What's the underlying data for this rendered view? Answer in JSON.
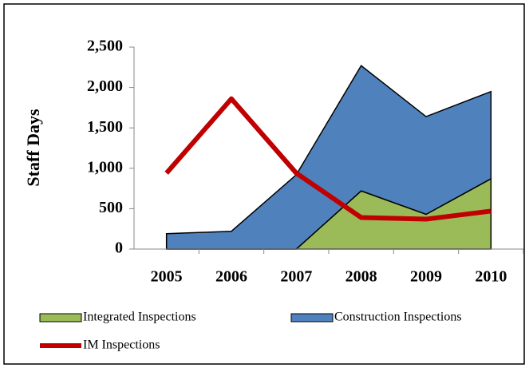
{
  "chart_data": {
    "type": "stacked-area-line",
    "y_label": "Staff Days",
    "categories": [
      "2005",
      "2006",
      "2007",
      "2008",
      "2009",
      "2010"
    ],
    "series": [
      {
        "name": "Integrated Inspections",
        "kind": "area",
        "color": "#9bbb59",
        "values": [
          0,
          0,
          0,
          720,
          430,
          870
        ]
      },
      {
        "name": "Construction Inspections",
        "kind": "area",
        "color": "#4f81bd",
        "values": [
          190,
          220,
          920,
          1550,
          1210,
          1080
        ]
      },
      {
        "name": "IM Inspections",
        "kind": "line",
        "color": "#c00000",
        "values": [
          940,
          1860,
          940,
          390,
          370,
          470
        ]
      }
    ],
    "ylim": [
      0,
      2500
    ],
    "yticks": [
      0,
      {
        "value": 500,
        "label": "500"
      },
      {
        "value": 1000,
        "label": "1,000"
      },
      {
        "value": 1500,
        "label": "1,500"
      },
      {
        "value": 2000,
        "label": "2,000"
      },
      {
        "value": 2500,
        "label": "2,500"
      }
    ],
    "grid": false
  }
}
